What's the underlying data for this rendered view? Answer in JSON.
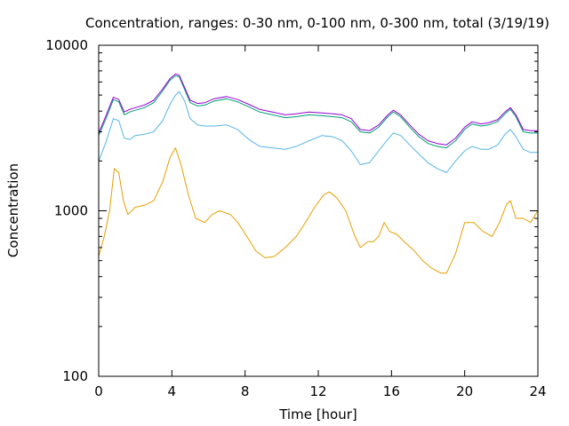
{
  "chart_data": {
    "type": "line",
    "title": "Concentration, ranges: 0-30 nm, 0-100 nm, 0-300 nm, total (3/19/19)",
    "xlabel": "Time [hour]",
    "ylabel": "Concentration",
    "xlim": [
      0,
      24
    ],
    "ylim": [
      100,
      10000
    ],
    "yscale": "log",
    "xticks": [
      0,
      4,
      8,
      12,
      16,
      20,
      24
    ],
    "yticks": [
      100,
      1000,
      10000
    ],
    "grid": false,
    "legend": "none",
    "series": [
      {
        "color": "#e69f00",
        "x": [
          0,
          0.3,
          0.6,
          0.85,
          1.1,
          1.35,
          1.6,
          2,
          2.5,
          3,
          3.5,
          3.9,
          4.2,
          4.5,
          4.9,
          5.3,
          5.8,
          6.2,
          6.6,
          7.2,
          7.6,
          8.1,
          8.6,
          9.1,
          9.6,
          10.2,
          10.8,
          11.3,
          11.8,
          12.3,
          12.6,
          13,
          13.5,
          14,
          14.3,
          14.7,
          15,
          15.3,
          15.6,
          15.9,
          16.3,
          16.7,
          17.2,
          17.7,
          18.2,
          18.7,
          19,
          19.5,
          20,
          20.5,
          21,
          21.5,
          21.9,
          22.3,
          22.5,
          22.8,
          23.2,
          23.6,
          24
        ],
        "values": [
          530,
          700,
          1000,
          1800,
          1700,
          1150,
          950,
          1050,
          1080,
          1150,
          1500,
          2100,
          2400,
          1900,
          1250,
          900,
          850,
          950,
          1000,
          950,
          850,
          700,
          570,
          520,
          530,
          600,
          700,
          850,
          1050,
          1250,
          1300,
          1200,
          1000,
          700,
          600,
          650,
          650,
          700,
          850,
          750,
          720,
          650,
          580,
          500,
          450,
          420,
          420,
          550,
          850,
          850,
          750,
          700,
          850,
          1100,
          1150,
          900,
          900,
          850,
          1000
        ]
      },
      {
        "color": "#56b4e9",
        "x": [
          0,
          0.4,
          0.8,
          1.1,
          1.4,
          1.7,
          2,
          2.5,
          3,
          3.5,
          3.9,
          4.2,
          4.4,
          4.7,
          5,
          5.4,
          5.8,
          6.3,
          7,
          7.6,
          8.2,
          8.8,
          9.5,
          10.2,
          10.8,
          11.5,
          12.2,
          12.8,
          13.3,
          13.8,
          14.3,
          14.8,
          15.3,
          15.8,
          16.1,
          16.5,
          17,
          17.5,
          18,
          18.5,
          19,
          19.5,
          20,
          20.4,
          20.9,
          21.3,
          21.8,
          22.2,
          22.5,
          22.8,
          23.2,
          23.6,
          24
        ],
        "values": [
          2000,
          2600,
          3600,
          3500,
          2750,
          2700,
          2850,
          2900,
          3000,
          3500,
          4400,
          5000,
          5250,
          4600,
          3600,
          3300,
          3250,
          3250,
          3300,
          3100,
          2700,
          2450,
          2400,
          2350,
          2450,
          2650,
          2850,
          2800,
          2650,
          2300,
          1900,
          1950,
          2300,
          2700,
          2950,
          2850,
          2500,
          2200,
          1950,
          1800,
          1700,
          2000,
          2300,
          2450,
          2350,
          2350,
          2500,
          2900,
          3100,
          2800,
          2350,
          2250,
          2250
        ]
      },
      {
        "color": "#009e73",
        "x": [
          0,
          0.4,
          0.8,
          1.1,
          1.4,
          1.7,
          2,
          2.5,
          3,
          3.5,
          3.9,
          4.2,
          4.4,
          4.7,
          5,
          5.4,
          5.8,
          6.3,
          7,
          7.6,
          8.2,
          8.8,
          9.5,
          10.2,
          10.8,
          11.5,
          12.2,
          12.8,
          13.3,
          13.8,
          14.3,
          14.8,
          15.3,
          15.8,
          16.1,
          16.5,
          17,
          17.5,
          18,
          18.5,
          19,
          19.5,
          20,
          20.4,
          20.9,
          21.3,
          21.8,
          22.2,
          22.5,
          22.8,
          23.2,
          23.6,
          24
        ],
        "values": [
          2850,
          3600,
          4700,
          4550,
          3800,
          3950,
          4050,
          4200,
          4500,
          5300,
          6150,
          6550,
          6450,
          5400,
          4500,
          4300,
          4350,
          4600,
          4750,
          4550,
          4250,
          3950,
          3800,
          3650,
          3700,
          3800,
          3750,
          3700,
          3650,
          3450,
          3000,
          2950,
          3200,
          3700,
          3950,
          3700,
          3200,
          2800,
          2550,
          2450,
          2400,
          2650,
          3100,
          3350,
          3250,
          3300,
          3450,
          3850,
          4100,
          3700,
          3000,
          2950,
          2950
        ]
      },
      {
        "color": "#9400d3",
        "x": [
          0,
          0.4,
          0.8,
          1.1,
          1.4,
          1.7,
          2,
          2.5,
          3,
          3.5,
          3.9,
          4.2,
          4.4,
          4.7,
          5,
          5.4,
          5.8,
          6.3,
          7,
          7.6,
          8.2,
          8.8,
          9.5,
          10.2,
          10.8,
          11.5,
          12.2,
          12.8,
          13.3,
          13.8,
          14.3,
          14.8,
          15.3,
          15.8,
          16.1,
          16.5,
          17,
          17.5,
          18,
          18.5,
          19,
          19.5,
          20,
          20.4,
          20.9,
          21.3,
          21.8,
          22.2,
          22.5,
          22.8,
          23.2,
          23.6,
          24
        ],
        "values": [
          2950,
          3750,
          4850,
          4700,
          3950,
          4100,
          4200,
          4350,
          4650,
          5450,
          6300,
          6700,
          6600,
          5550,
          4650,
          4450,
          4500,
          4750,
          4900,
          4700,
          4400,
          4100,
          3950,
          3800,
          3850,
          3950,
          3900,
          3850,
          3800,
          3600,
          3100,
          3050,
          3300,
          3800,
          4050,
          3800,
          3300,
          2900,
          2650,
          2550,
          2500,
          2750,
          3200,
          3450,
          3350,
          3400,
          3550,
          3950,
          4200,
          3800,
          3100,
          3050,
          3050
        ]
      }
    ]
  }
}
